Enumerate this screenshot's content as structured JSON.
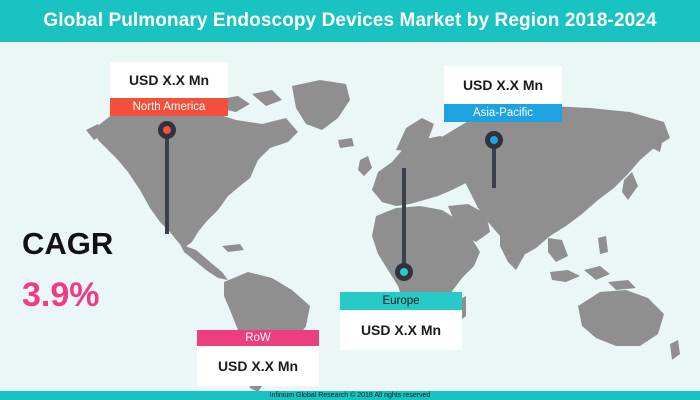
{
  "title": "Global Pulmonary Endoscopy Devices Market by Region 2018-2024",
  "colors": {
    "teal": "#18c3c1",
    "map_land": "#8f8f8f",
    "north_america": "#f2503a",
    "asia_pacific": "#1fa3e0",
    "europe": "#27cac7",
    "row": "#ec3f7f",
    "cagr": "#ee3c86"
  },
  "regions": {
    "north_america": {
      "label": "North America",
      "value": "USD X.X Mn"
    },
    "asia_pacific": {
      "label": "Asia-Pacific",
      "value": "USD X.X Mn"
    },
    "europe": {
      "label": "Europe",
      "value": "USD X.X Mn"
    },
    "row": {
      "label": "RoW",
      "value": "USD X.X Mn"
    }
  },
  "cagr": {
    "label": "CAGR",
    "value": "3.9%"
  },
  "footer": "Infinium Global Research © 2018 All rights reserved"
}
